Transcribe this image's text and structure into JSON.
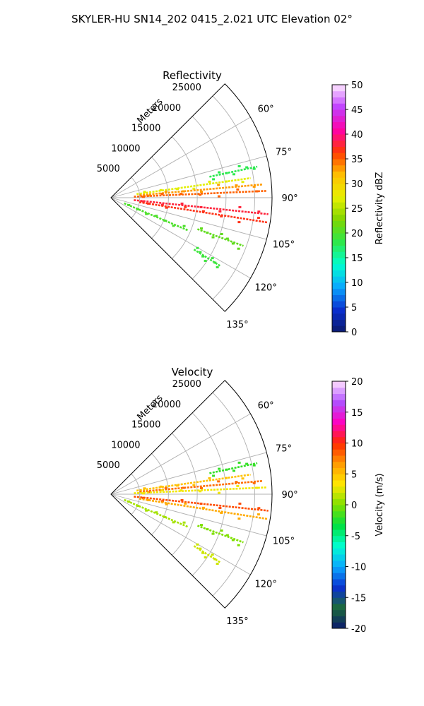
{
  "figure_title": "SKYLER-HU  SN14_202  0415_2.021 UTC Elevation 02°",
  "chart_data": [
    {
      "type": "polar-sector",
      "title": "Reflectivity",
      "theta_range_deg": [
        45,
        135
      ],
      "theta_ticks": [
        "60°",
        "75°",
        "90°",
        "105°",
        "120°",
        "135°"
      ],
      "theta_tick_values": [
        60,
        75,
        90,
        105,
        120,
        135
      ],
      "r_max": 28000,
      "r_label": "Meters",
      "r_ticks": [
        "5000",
        "10000",
        "15000",
        "20000",
        "25000"
      ],
      "r_tick_values": [
        5000,
        10000,
        15000,
        20000,
        25000
      ],
      "grid": true,
      "colorbar": {
        "label": "Reflectivity dBZ",
        "range": [
          0,
          50
        ],
        "ticks": [
          "0",
          "5",
          "10",
          "15",
          "20",
          "25",
          "30",
          "35",
          "40",
          "45",
          "50"
        ],
        "colormap": [
          "#0b1a6e",
          "#0a2fd0",
          "#0aa8ff",
          "#00ffd0",
          "#2ee84a",
          "#7fd500",
          "#e8f000",
          "#ffbf00",
          "#ff3a00",
          "#ff00a8",
          "#c040ff",
          "#ffe8ff"
        ]
      },
      "returns": [
        {
          "az": 82,
          "r0": 4500,
          "r1": 24500,
          "dbz": 27
        },
        {
          "az": 85,
          "r0": 5000,
          "r1": 26500,
          "dbz": 33
        },
        {
          "az": 87.5,
          "r0": 4000,
          "r1": 27000,
          "dbz": 35
        },
        {
          "az": 96,
          "r0": 4000,
          "r1": 27500,
          "dbz": 38
        },
        {
          "az": 99,
          "r0": 5000,
          "r1": 27500,
          "dbz": 37
        },
        {
          "az": 113,
          "r0": 2500,
          "r1": 14500,
          "dbz": 20
        },
        {
          "az": 110,
          "r0": 16000,
          "r1": 24500,
          "dbz": 21
        },
        {
          "az": 122,
          "r0": 17000,
          "r1": 22500,
          "dbz": 19
        },
        {
          "az": 78,
          "r0": 17500,
          "r1": 26000,
          "dbz": 18
        }
      ]
    },
    {
      "type": "polar-sector",
      "title": "Velocity",
      "theta_range_deg": [
        45,
        135
      ],
      "theta_ticks": [
        "60°",
        "75°",
        "90°",
        "105°",
        "120°",
        "135°"
      ],
      "theta_tick_values": [
        60,
        75,
        90,
        105,
        120,
        135
      ],
      "r_max": 28000,
      "r_label": "Meters",
      "r_ticks": [
        "5000",
        "10000",
        "15000",
        "20000",
        "25000"
      ],
      "r_tick_values": [
        5000,
        10000,
        15000,
        20000,
        25000
      ],
      "grid": true,
      "colorbar": {
        "label": "Velocity (m/s)",
        "range": [
          -20,
          20
        ],
        "ticks": [
          "-20",
          "-15",
          "-10",
          "-5",
          "0",
          "5",
          "10",
          "15",
          "20"
        ],
        "colormap": [
          "#0b1a6e",
          "#1c6b3a",
          "#0a2fd0",
          "#0aa8ff",
          "#00ffd0",
          "#00e040",
          "#7fe000",
          "#ffe800",
          "#ff9a00",
          "#ff2a00",
          "#ff00c0",
          "#b050ff",
          "#ffe0ff"
        ]
      },
      "returns": [
        {
          "az": 82,
          "r0": 4500,
          "r1": 24500,
          "vel": 5
        },
        {
          "az": 85,
          "r0": 5000,
          "r1": 26500,
          "vel": 8
        },
        {
          "az": 87.5,
          "r0": 4000,
          "r1": 27000,
          "vel": 3
        },
        {
          "az": 96,
          "r0": 4000,
          "r1": 27500,
          "vel": 9
        },
        {
          "az": 99,
          "r0": 5000,
          "r1": 27500,
          "vel": 6
        },
        {
          "az": 113,
          "r0": 2500,
          "r1": 14500,
          "vel": 1
        },
        {
          "az": 110,
          "r0": 16000,
          "r1": 24500,
          "vel": 0
        },
        {
          "az": 122,
          "r0": 17000,
          "r1": 22500,
          "vel": 2
        },
        {
          "az": 78,
          "r0": 17500,
          "r1": 26000,
          "vel": -2
        }
      ]
    }
  ]
}
